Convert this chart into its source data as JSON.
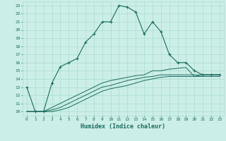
{
  "xlabel": "Humidex (Indice chaleur)",
  "bg_color": "#cceee8",
  "grid_color": "#aaddcc",
  "line_color": "#1a6b5e",
  "xlim": [
    -0.5,
    23.5
  ],
  "ylim": [
    9.5,
    23.5
  ],
  "yticks": [
    10,
    11,
    12,
    13,
    14,
    15,
    16,
    17,
    18,
    19,
    20,
    21,
    22,
    23
  ],
  "xticks": [
    0,
    1,
    2,
    3,
    4,
    5,
    6,
    7,
    8,
    9,
    10,
    11,
    12,
    13,
    14,
    15,
    16,
    17,
    18,
    19,
    20,
    21,
    22,
    23
  ],
  "main": {
    "x": [
      0,
      1,
      2,
      3,
      4,
      5,
      6,
      7,
      8,
      9,
      10,
      11,
      12,
      13,
      14,
      15,
      16,
      17,
      18,
      19,
      20,
      21,
      22,
      23
    ],
    "y": [
      13,
      10,
      10,
      13.5,
      15.5,
      16.0,
      16.5,
      18.5,
      19.5,
      21.0,
      21.0,
      23.0,
      22.8,
      22.2,
      19.5,
      21.0,
      19.8,
      17.0,
      16.0,
      16.0,
      15.0,
      14.5,
      14.5,
      14.5
    ]
  },
  "line2": {
    "x": [
      0,
      1,
      2,
      3,
      4,
      5,
      6,
      7,
      8,
      9,
      10,
      11,
      12,
      13,
      14,
      15,
      16,
      17,
      18,
      19,
      20,
      21,
      22,
      23
    ],
    "y": [
      10,
      10,
      10,
      10.5,
      11.0,
      11.5,
      12.0,
      12.5,
      13.0,
      13.5,
      13.8,
      14.0,
      14.2,
      14.4,
      14.5,
      15.0,
      15.0,
      15.2,
      15.3,
      15.4,
      14.3,
      14.5,
      14.5,
      14.5
    ]
  },
  "line3": {
    "x": [
      0,
      1,
      2,
      3,
      4,
      5,
      6,
      7,
      8,
      9,
      10,
      11,
      12,
      13,
      14,
      15,
      16,
      17,
      18,
      19,
      20,
      21,
      22,
      23
    ],
    "y": [
      10,
      10,
      10,
      10.2,
      10.5,
      11.0,
      11.5,
      12.0,
      12.5,
      13.0,
      13.2,
      13.5,
      13.8,
      14.0,
      14.2,
      14.3,
      14.5,
      14.5,
      14.5,
      14.5,
      14.5,
      14.5,
      14.5,
      14.5
    ]
  },
  "line4": {
    "x": [
      0,
      1,
      2,
      3,
      4,
      5,
      6,
      7,
      8,
      9,
      10,
      11,
      12,
      13,
      14,
      15,
      16,
      17,
      18,
      19,
      20,
      21,
      22,
      23
    ],
    "y": [
      10,
      10,
      10,
      10.0,
      10.2,
      10.5,
      11.0,
      11.5,
      12.0,
      12.5,
      12.8,
      13.0,
      13.2,
      13.5,
      13.8,
      14.0,
      14.2,
      14.3,
      14.3,
      14.3,
      14.3,
      14.3,
      14.3,
      14.3
    ]
  }
}
